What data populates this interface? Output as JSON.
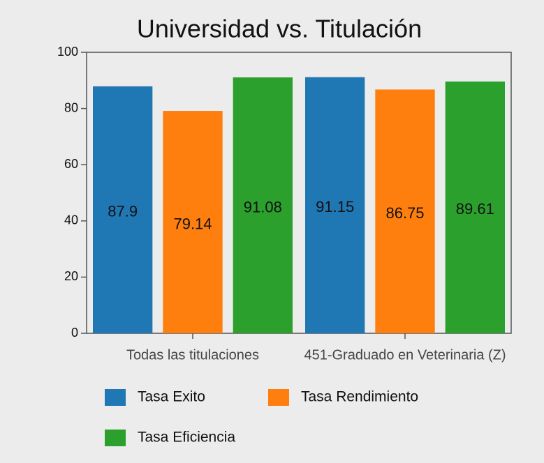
{
  "chart_data": {
    "type": "bar",
    "title": "Universidad vs. Titulación",
    "categories": [
      "Todas las titulaciones",
      "451-Graduado en Veterinaria (Z)"
    ],
    "series": [
      {
        "name": "Tasa Exito",
        "color": "#1f77b4",
        "values": [
          87.9,
          91.15
        ]
      },
      {
        "name": "Tasa Rendimiento",
        "color": "#ff7f0e",
        "values": [
          79.14,
          86.75
        ]
      },
      {
        "name": "Tasa Eficiencia",
        "color": "#2ca02c",
        "values": [
          91.08,
          89.61
        ]
      }
    ],
    "ylim": [
      0,
      100
    ],
    "yticks": [
      0,
      20,
      40,
      60,
      80,
      100
    ]
  }
}
